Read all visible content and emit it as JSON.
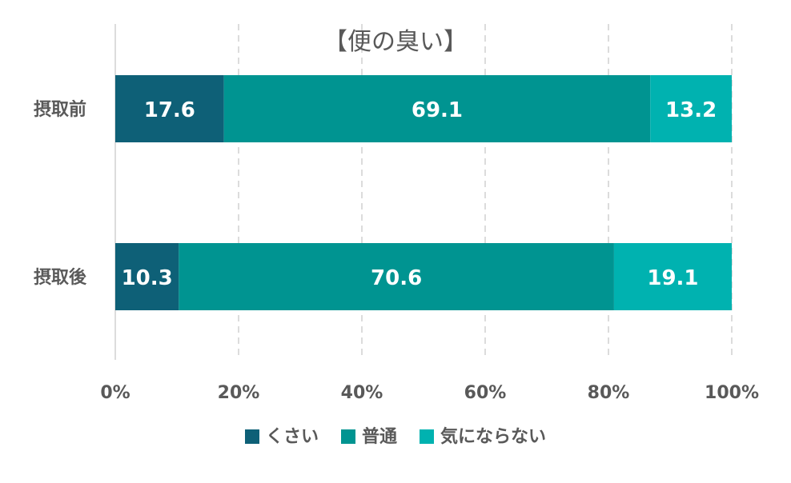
{
  "chart_data": {
    "type": "bar",
    "orientation": "horizontal",
    "stacked": "percent",
    "title": "【便の臭い】",
    "categories": [
      "摂取前",
      "摂取後"
    ],
    "series": [
      {
        "name": "くさい",
        "color": "#0e6077",
        "values": [
          17.6,
          10.3
        ]
      },
      {
        "name": "普通",
        "color": "#009491",
        "values": [
          69.1,
          70.6
        ]
      },
      {
        "name": "気にならない",
        "color": "#00b2b0",
        "values": [
          13.2,
          19.1
        ]
      }
    ],
    "xlim": [
      0,
      100
    ],
    "xticks": [
      0,
      20,
      40,
      60,
      80,
      100
    ],
    "xtick_labels": [
      "0%",
      "20%",
      "40%",
      "60%",
      "80%",
      "100%"
    ],
    "grid": "vertical-dashed",
    "legend_position": "bottom",
    "colors": {
      "text": "#595959",
      "grid": "#d0d0d0",
      "label": "#ffffff"
    }
  }
}
